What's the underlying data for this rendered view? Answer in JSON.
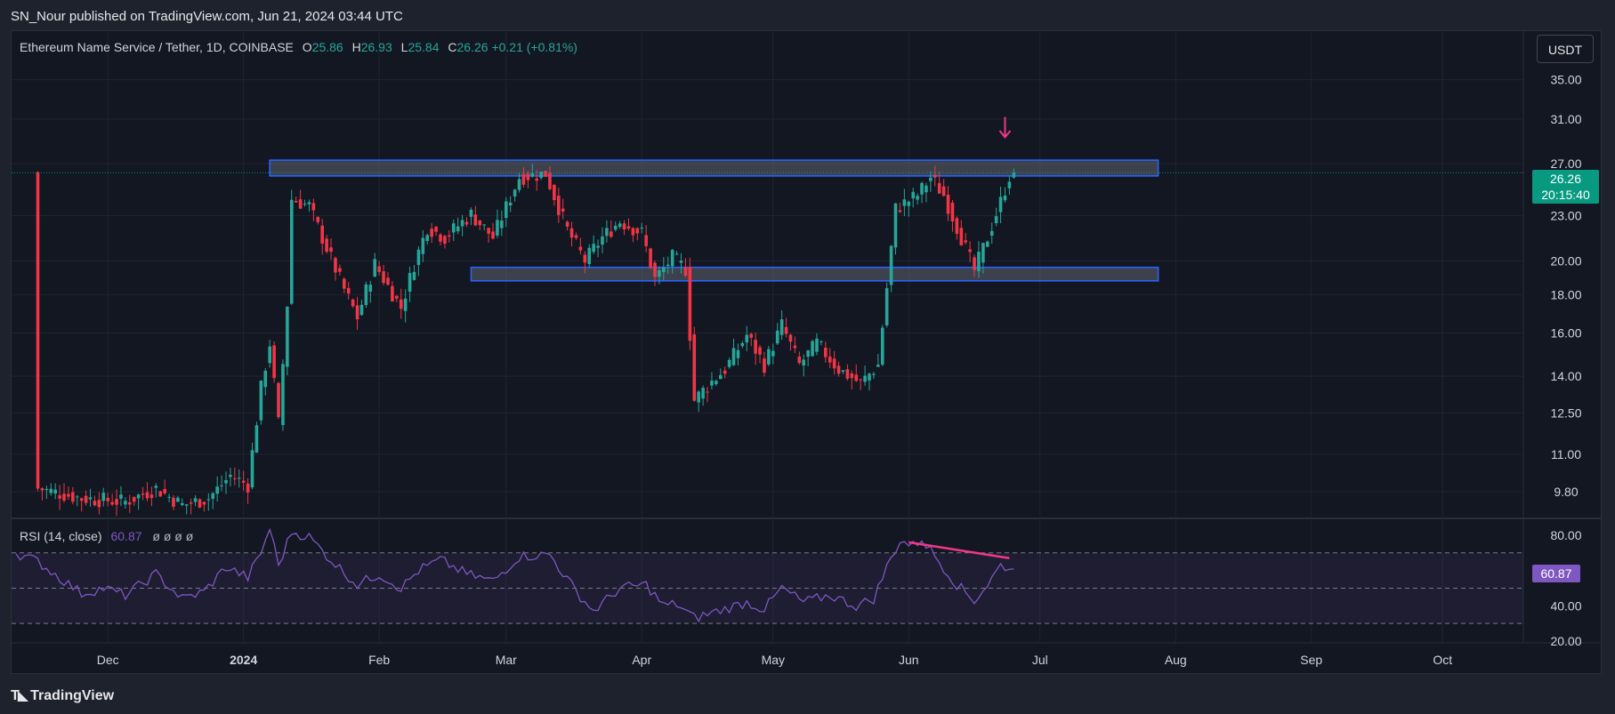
{
  "published_by": "SN_Nour published on TradingView.com, Jun 21, 2024 03:44 UTC",
  "legend": {
    "symbol": "Ethereum Name Service / Tether, 1D, COINBASE",
    "o_label": "O",
    "o_value": "25.86",
    "h_label": "H",
    "h_value": "26.93",
    "l_label": "L",
    "l_value": "25.84",
    "c_label": "C",
    "c_value": "26.26",
    "change": "+0.21 (+0.81%)"
  },
  "currency": "USDT",
  "last_price": "26.26",
  "countdown": "20:15:40",
  "rsi": {
    "title": "RSI (14, close)",
    "value": "60.87",
    "placeholders": "ø ø ø ø",
    "label": "60.87"
  },
  "brand": "TradingView",
  "colors": {
    "up": "#26a69a",
    "down": "#f23645",
    "rsi": "#7e57c2",
    "zone_border": "#2962ff",
    "arrow": "#f0378a",
    "accent_label": "#089981"
  },
  "chart_data": [
    {
      "type": "candlestick",
      "title": "Ethereum Name Service / Tether, 1D, COINBASE",
      "y_scale": "log",
      "ylim": [
        9.3,
        38.5
      ],
      "y_ticks": [
        "35.00",
        "31.00",
        "27.00",
        "23.00",
        "20.00",
        "18.00",
        "16.00",
        "14.00",
        "12.50",
        "11.00",
        "9.80"
      ],
      "x_ticks": [
        "Dec",
        "2024",
        "Feb",
        "Mar",
        "Apr",
        "May",
        "Jun",
        "Jul",
        "Aug",
        "Sep",
        "Oct"
      ],
      "x_tick_dates": [
        "2023-12-01",
        "2024-01-01",
        "2024-02-01",
        "2024-03-01",
        "2024-04-01",
        "2024-05-01",
        "2024-06-01",
        "2024-07-01",
        "2024-08-01",
        "2024-09-01",
        "2024-10-01"
      ],
      "xlim": [
        "2023-11-09",
        "2024-10-17"
      ],
      "price_path": [
        [
          "2023-11-15",
          9.9
        ],
        [
          "2023-11-25",
          9.6
        ],
        [
          "2023-12-05",
          9.5
        ],
        [
          "2023-12-12",
          9.9
        ],
        [
          "2023-12-18",
          9.4
        ],
        [
          "2023-12-24",
          9.6
        ],
        [
          "2023-12-29",
          10.3
        ],
        [
          "2024-01-02",
          10.0
        ],
        [
          "2024-01-05",
          13.5
        ],
        [
          "2024-01-07",
          15.5
        ],
        [
          "2024-01-09",
          12.1
        ],
        [
          "2024-01-11",
          17.5
        ],
        [
          "2024-01-12",
          24.2
        ],
        [
          "2024-01-16",
          23.7
        ],
        [
          "2024-01-20",
          20.8
        ],
        [
          "2024-01-24",
          18.3
        ],
        [
          "2024-01-27",
          16.8
        ],
        [
          "2024-01-31",
          19.8
        ],
        [
          "2024-02-03",
          18.5
        ],
        [
          "2024-02-06",
          17.3
        ],
        [
          "2024-02-09",
          19.8
        ],
        [
          "2024-02-12",
          22.2
        ],
        [
          "2024-02-16",
          21.5
        ],
        [
          "2024-02-22",
          23.1
        ],
        [
          "2024-02-27",
          21.5
        ],
        [
          "2024-03-04",
          25.9
        ],
        [
          "2024-03-10",
          26.2
        ],
        [
          "2024-03-15",
          22.0
        ],
        [
          "2024-03-19",
          20.0
        ],
        [
          "2024-03-23",
          21.5
        ],
        [
          "2024-03-27",
          22.6
        ],
        [
          "2024-04-01",
          21.8
        ],
        [
          "2024-04-04",
          18.9
        ],
        [
          "2024-04-08",
          20.2
        ],
        [
          "2024-04-11",
          19.5
        ],
        [
          "2024-04-13",
          13.0
        ],
        [
          "2024-04-16",
          13.6
        ],
        [
          "2024-04-20",
          14.3
        ],
        [
          "2024-04-25",
          15.9
        ],
        [
          "2024-04-29",
          14.5
        ],
        [
          "2024-05-03",
          16.4
        ],
        [
          "2024-05-07",
          14.5
        ],
        [
          "2024-05-11",
          15.5
        ],
        [
          "2024-05-16",
          14.3
        ],
        [
          "2024-05-21",
          13.7
        ],
        [
          "2024-05-25",
          14.5
        ],
        [
          "2024-05-27",
          18.4
        ],
        [
          "2024-05-29",
          23.5
        ],
        [
          "2024-06-03",
          24.5
        ],
        [
          "2024-06-06",
          25.9
        ],
        [
          "2024-06-09",
          24.5
        ],
        [
          "2024-06-13",
          21.5
        ],
        [
          "2024-06-16",
          19.4
        ],
        [
          "2024-06-19",
          21.5
        ],
        [
          "2024-06-22",
          24.0
        ],
        [
          "2024-06-24",
          26.0
        ],
        [
          "2024-06-25",
          26.26
        ]
      ],
      "zones": [
        {
          "name": "resistance",
          "from": "2024-01-07",
          "to": "2024-07-28",
          "low": 26.0,
          "high": 27.3
        },
        {
          "name": "support",
          "from": "2024-02-22",
          "to": "2024-07-28",
          "low": 18.8,
          "high": 19.6
        }
      ],
      "last_price": 26.26
    },
    {
      "type": "line",
      "title": "RSI (14, close)",
      "ylim": [
        20,
        85
      ],
      "y_ticks": [
        "80.00",
        "40.00",
        "20.00"
      ],
      "bands": [
        70,
        50,
        30
      ],
      "values": [
        [
          "2023-11-10",
          70
        ],
        [
          "2023-11-15",
          65
        ],
        [
          "2023-11-20",
          56
        ],
        [
          "2023-11-25",
          47
        ],
        [
          "2023-11-30",
          50
        ],
        [
          "2023-12-05",
          46
        ],
        [
          "2023-12-12",
          58
        ],
        [
          "2023-12-18",
          44
        ],
        [
          "2023-12-23",
          48
        ],
        [
          "2023-12-28",
          62
        ],
        [
          "2024-01-02",
          56
        ],
        [
          "2024-01-05",
          70
        ],
        [
          "2024-01-07",
          84
        ],
        [
          "2024-01-09",
          63
        ],
        [
          "2024-01-12",
          82
        ],
        [
          "2024-01-16",
          79
        ],
        [
          "2024-01-21",
          66
        ],
        [
          "2024-01-27",
          52
        ],
        [
          "2024-02-01",
          58
        ],
        [
          "2024-02-06",
          50
        ],
        [
          "2024-02-10",
          60
        ],
        [
          "2024-02-15",
          66
        ],
        [
          "2024-02-21",
          58
        ],
        [
          "2024-02-27",
          54
        ],
        [
          "2024-03-04",
          68
        ],
        [
          "2024-03-11",
          69
        ],
        [
          "2024-03-17",
          48
        ],
        [
          "2024-03-21",
          37
        ],
        [
          "2024-03-27",
          50
        ],
        [
          "2024-04-02",
          52
        ],
        [
          "2024-04-06",
          40
        ],
        [
          "2024-04-09",
          41
        ],
        [
          "2024-04-13",
          33
        ],
        [
          "2024-04-17",
          36
        ],
        [
          "2024-04-25",
          42
        ],
        [
          "2024-04-29",
          38
        ],
        [
          "2024-05-03",
          50
        ],
        [
          "2024-05-08",
          42
        ],
        [
          "2024-05-14",
          46
        ],
        [
          "2024-05-20",
          40
        ],
        [
          "2024-05-24",
          44
        ],
        [
          "2024-05-27",
          62
        ],
        [
          "2024-05-30",
          77
        ],
        [
          "2024-06-02",
          74
        ],
        [
          "2024-06-04",
          78
        ],
        [
          "2024-06-08",
          65
        ],
        [
          "2024-06-12",
          52
        ],
        [
          "2024-06-16",
          43
        ],
        [
          "2024-06-19",
          52
        ],
        [
          "2024-06-22",
          63
        ],
        [
          "2024-06-25",
          60.87
        ]
      ],
      "divergence": [
        [
          "2024-06-01",
          76
        ],
        [
          "2024-06-24",
          67
        ]
      ]
    }
  ]
}
